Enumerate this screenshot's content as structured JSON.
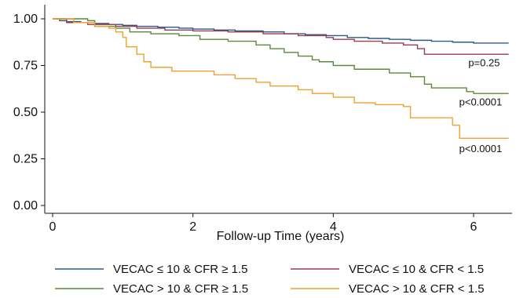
{
  "chart_data": {
    "type": "line",
    "step": true,
    "xlabel": "Follow-up Time (years)",
    "ylabel": "",
    "xlim": [
      0,
      6.5
    ],
    "ylim": [
      0,
      1.0
    ],
    "xticks": [
      "0",
      "2",
      "4",
      "6"
    ],
    "xtick_values": [
      0,
      2,
      4,
      6
    ],
    "yticks": [
      "0.00",
      "0.25",
      "0.50",
      "0.75",
      "1.00"
    ],
    "ytick_values": [
      0,
      0.25,
      0.5,
      0.75,
      1.0
    ],
    "grid": false,
    "legend_position": "bottom",
    "series": [
      {
        "name": "VECAC ≤ 10 & CFR ≥ 1.5",
        "color": "#2a5a8c",
        "points": [
          [
            0,
            1.0
          ],
          [
            0.1,
            0.99
          ],
          [
            0.2,
            0.985
          ],
          [
            0.4,
            0.98
          ],
          [
            0.6,
            0.975
          ],
          [
            0.8,
            0.97
          ],
          [
            1.0,
            0.965
          ],
          [
            1.2,
            0.96
          ],
          [
            1.5,
            0.955
          ],
          [
            1.8,
            0.95
          ],
          [
            2.0,
            0.945
          ],
          [
            2.3,
            0.94
          ],
          [
            2.6,
            0.935
          ],
          [
            3.0,
            0.93
          ],
          [
            3.3,
            0.92
          ],
          [
            3.6,
            0.915
          ],
          [
            3.9,
            0.91
          ],
          [
            4.2,
            0.9
          ],
          [
            4.5,
            0.895
          ],
          [
            4.8,
            0.89
          ],
          [
            5.1,
            0.885
          ],
          [
            5.4,
            0.88
          ],
          [
            5.7,
            0.875
          ],
          [
            6.0,
            0.87
          ],
          [
            6.5,
            0.87
          ]
        ]
      },
      {
        "name": "VECAC ≤ 10 & CFR < 1.5",
        "color": "#9b3b4e",
        "points": [
          [
            0,
            1.0
          ],
          [
            0.2,
            0.98
          ],
          [
            0.5,
            0.97
          ],
          [
            0.9,
            0.96
          ],
          [
            1.2,
            0.95
          ],
          [
            1.6,
            0.94
          ],
          [
            2.0,
            0.935
          ],
          [
            2.5,
            0.93
          ],
          [
            3.0,
            0.92
          ],
          [
            3.5,
            0.91
          ],
          [
            3.9,
            0.9
          ],
          [
            4.0,
            0.89
          ],
          [
            4.3,
            0.88
          ],
          [
            4.7,
            0.87
          ],
          [
            5.0,
            0.86
          ],
          [
            5.2,
            0.84
          ],
          [
            5.3,
            0.81
          ],
          [
            6.5,
            0.81
          ]
        ]
      },
      {
        "name": "VECAC > 10 & CFR ≥ 1.5",
        "color": "#5a8a3a",
        "points": [
          [
            0,
            1.0
          ],
          [
            0.5,
            0.99
          ],
          [
            0.6,
            0.96
          ],
          [
            0.9,
            0.95
          ],
          [
            1.1,
            0.93
          ],
          [
            1.4,
            0.92
          ],
          [
            1.8,
            0.91
          ],
          [
            2.1,
            0.89
          ],
          [
            2.5,
            0.88
          ],
          [
            2.9,
            0.86
          ],
          [
            3.1,
            0.84
          ],
          [
            3.3,
            0.82
          ],
          [
            3.5,
            0.8
          ],
          [
            3.7,
            0.78
          ],
          [
            3.8,
            0.77
          ],
          [
            4.0,
            0.75
          ],
          [
            4.3,
            0.73
          ],
          [
            4.8,
            0.71
          ],
          [
            5.1,
            0.69
          ],
          [
            5.3,
            0.65
          ],
          [
            5.4,
            0.63
          ],
          [
            5.9,
            0.61
          ],
          [
            6.0,
            0.6
          ],
          [
            6.5,
            0.6
          ]
        ]
      },
      {
        "name": "VECAC > 10 & CFR < 1.5",
        "color": "#f0a030",
        "points": [
          [
            0,
            1.0
          ],
          [
            0.3,
            0.98
          ],
          [
            0.6,
            0.96
          ],
          [
            0.8,
            0.95
          ],
          [
            0.9,
            0.93
          ],
          [
            1.0,
            0.9
          ],
          [
            1.05,
            0.85
          ],
          [
            1.2,
            0.81
          ],
          [
            1.3,
            0.77
          ],
          [
            1.4,
            0.74
          ],
          [
            1.7,
            0.72
          ],
          [
            2.3,
            0.7
          ],
          [
            2.6,
            0.68
          ],
          [
            2.9,
            0.66
          ],
          [
            3.1,
            0.64
          ],
          [
            3.5,
            0.62
          ],
          [
            3.7,
            0.6
          ],
          [
            4.0,
            0.58
          ],
          [
            4.3,
            0.55
          ],
          [
            4.6,
            0.54
          ],
          [
            5.0,
            0.53
          ],
          [
            5.1,
            0.47
          ],
          [
            5.7,
            0.43
          ],
          [
            5.8,
            0.36
          ],
          [
            6.5,
            0.36
          ]
        ]
      }
    ],
    "annotations": [
      {
        "text": "p=0.25",
        "x": 6.15,
        "y": 0.745
      },
      {
        "text": "p<0.0001",
        "x": 6.1,
        "y": 0.535
      },
      {
        "text": "p<0.0001",
        "x": 6.1,
        "y": 0.285
      }
    ]
  }
}
